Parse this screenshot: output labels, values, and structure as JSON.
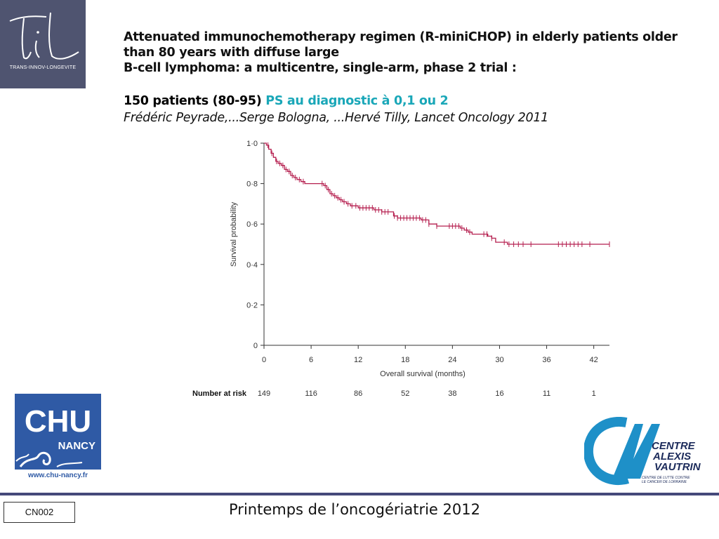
{
  "header": {
    "logo_caption": "TRANS-INNOV-LONGEVITE",
    "title_lines": [
      "Attenuated immunochemotherapy regimen (R-miniCHOP) in elderly patients older",
      "than 80 years with diffuse large",
      "B-cell lymphoma: a multicentre, single-arm, phase 2 trial :"
    ],
    "patients_text": "150 patients (80-95)",
    "ps_text": "PS au diagnostic à 0,1 ou 2",
    "citation": "Frédéric Peyrade,...Serge Bologna, ...Hervé Tilly, Lancet Oncology 2011"
  },
  "logos": {
    "chu_main": "CHU",
    "chu_sub": "NANCY",
    "chu_url": "www.chu-nancy.fr",
    "cav_lines": [
      "CENTRE",
      "ALEXIS",
      "VAUTRIN"
    ],
    "cav_tagline_1": "CENTRE DE LUTTE CONTRE",
    "cav_tagline_2": "LE CANCER DE LORRAINE"
  },
  "footer": {
    "code": "CN002",
    "title": "Printemps de l’oncogériatrie 2012"
  },
  "colors": {
    "curve": "#b51f4f",
    "accent_teal": "#1aa7b8",
    "slate": "#4f5470",
    "chu_blue": "#2f5aa5",
    "cav_blue": "#1e90c8"
  },
  "chart_data": {
    "type": "line",
    "subtype": "kaplan-meier",
    "xlabel": "Overall survival (months)",
    "ylabel": "Survival probability",
    "xlim": [
      0,
      44
    ],
    "ylim": [
      0,
      1
    ],
    "x_ticks": [
      0,
      6,
      12,
      18,
      24,
      30,
      36,
      42
    ],
    "x_tick_labels": [
      "0",
      "6",
      "12",
      "18",
      "24",
      "30",
      "36",
      "42"
    ],
    "y_ticks": [
      0,
      0.2,
      0.4,
      0.6,
      0.8,
      1.0
    ],
    "y_tick_labels": [
      "0",
      "0·2",
      "0·4",
      "0·6",
      "0·8",
      "1·0"
    ],
    "grid": false,
    "series": [
      {
        "x": [
          0,
          0.3,
          0.6,
          0.9,
          1.2,
          1.5,
          1.8,
          2.2,
          2.6,
          3.0,
          3.4,
          3.8,
          4.2,
          4.7,
          5.2,
          5.8,
          7.0,
          7.6,
          8.0,
          8.4,
          8.8,
          9.2,
          9.6,
          10.0,
          10.5,
          11.0,
          11.5,
          12.0,
          13.0,
          14.0,
          15.0,
          16.0,
          16.5,
          17.0,
          19.0,
          20.0,
          21.0,
          22.0,
          23.0,
          25.0,
          25.5,
          26.0,
          26.5,
          27.0,
          28.0,
          28.5,
          29.0,
          29.5,
          31.0,
          44.0
        ],
        "y": [
          1.0,
          0.99,
          0.97,
          0.95,
          0.93,
          0.91,
          0.9,
          0.89,
          0.87,
          0.86,
          0.84,
          0.83,
          0.82,
          0.81,
          0.8,
          0.8,
          0.8,
          0.79,
          0.77,
          0.75,
          0.74,
          0.73,
          0.72,
          0.71,
          0.7,
          0.69,
          0.69,
          0.68,
          0.68,
          0.67,
          0.66,
          0.66,
          0.64,
          0.63,
          0.63,
          0.62,
          0.6,
          0.59,
          0.59,
          0.58,
          0.57,
          0.56,
          0.55,
          0.55,
          0.55,
          0.54,
          0.53,
          0.51,
          0.5,
          0.5
        ]
      }
    ],
    "censor_x": [
      0.5,
      1.0,
      1.6,
      2.0,
      2.4,
      2.8,
      3.2,
      3.6,
      4.0,
      4.5,
      5.0,
      7.4,
      7.8,
      8.2,
      8.6,
      9.0,
      9.4,
      9.8,
      10.2,
      10.7,
      11.2,
      11.7,
      12.2,
      12.6,
      13.0,
      13.4,
      13.8,
      14.2,
      14.6,
      15.0,
      15.4,
      15.8,
      16.6,
      17.0,
      17.4,
      17.8,
      18.2,
      18.6,
      19.0,
      19.4,
      19.8,
      20.2,
      20.6,
      21.0,
      22.0,
      23.6,
      24.0,
      24.4,
      24.8,
      25.2,
      25.8,
      26.2,
      28.0,
      28.4,
      29.0,
      30.6,
      31.2,
      31.8,
      32.4,
      33.0,
      34.0,
      37.5,
      38.0,
      38.5,
      39.0,
      39.5,
      40.0,
      40.5,
      41.5,
      44.0
    ],
    "number_at_risk_label": "Number at risk",
    "number_at_risk": [
      "149",
      "116",
      "86",
      "52",
      "38",
      "16",
      "11",
      "1"
    ]
  }
}
